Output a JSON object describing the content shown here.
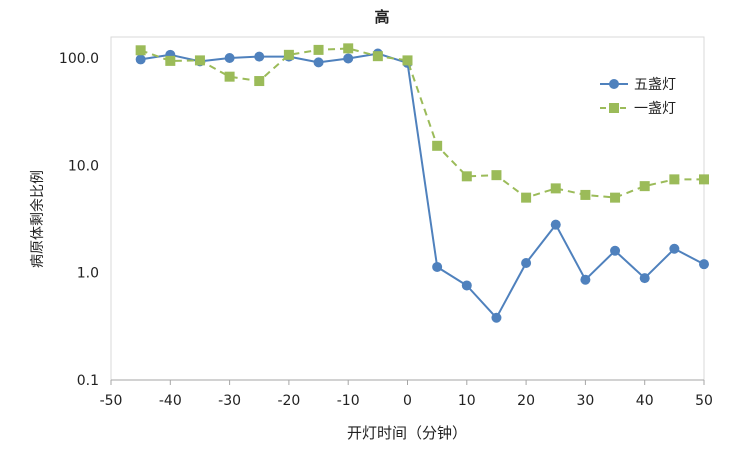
{
  "chart_data": {
    "type": "line",
    "title": "高",
    "xlabel": "开灯时间（分钟）",
    "ylabel": "病原体剩余比例",
    "x_scale": "linear",
    "y_scale": "log",
    "xlim": [
      -50,
      50
    ],
    "ylim": [
      0.1,
      200
    ],
    "x_ticks": [
      -50,
      -40,
      -30,
      -20,
      -10,
      0,
      10,
      20,
      30,
      40,
      50
    ],
    "x_tick_labels": [
      "-50",
      "-40",
      "-30",
      "-20",
      "-10",
      "0",
      "10",
      "20",
      "30",
      "40",
      "50"
    ],
    "y_ticks": [
      0.1,
      1,
      10,
      100
    ],
    "y_tick_labels": [
      "0.1",
      "1.0",
      "10.0",
      "100.0"
    ],
    "legend_position": "right",
    "series": [
      {
        "name": "五盏灯",
        "color": "#4f81bd",
        "line_style": "solid",
        "marker": "circle",
        "x": [
          -45,
          -40,
          -35,
          -30,
          -25,
          -20,
          -15,
          -10,
          -5,
          0,
          5,
          10,
          15,
          20,
          25,
          30,
          35,
          40,
          45,
          50
        ],
        "values": [
          97,
          107,
          93,
          100,
          103,
          103,
          91,
          99,
          110,
          90,
          1.13,
          0.76,
          0.38,
          1.23,
          2.8,
          0.86,
          1.6,
          0.89,
          1.67,
          1.2
        ]
      },
      {
        "name": "一盏灯",
        "color": "#9bbb59",
        "line_style": "dashed",
        "marker": "square",
        "x": [
          -45,
          -40,
          -35,
          -30,
          -25,
          -20,
          -15,
          -10,
          -5,
          0,
          5,
          10,
          15,
          20,
          25,
          30,
          35,
          40,
          45,
          50
        ],
        "values": [
          118,
          94,
          95,
          67,
          61,
          107,
          119,
          123,
          104,
          95,
          15.2,
          7.9,
          8.1,
          5.0,
          6.1,
          5.3,
          5.0,
          6.4,
          7.4,
          7.4
        ]
      }
    ]
  }
}
